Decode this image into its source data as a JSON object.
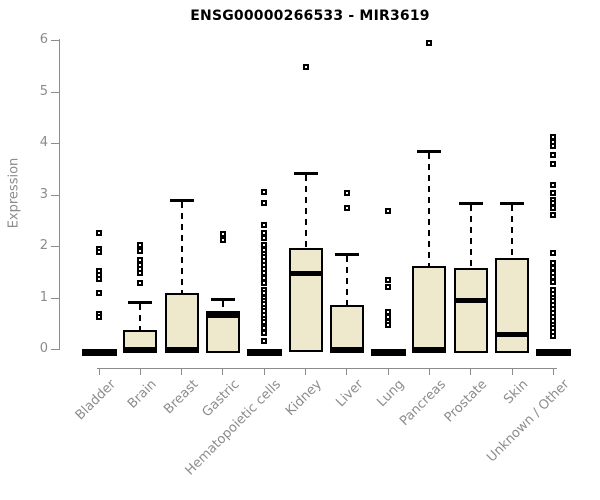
{
  "title": "ENSG00000266533 - MIR3619",
  "ylabel": "Expression",
  "colors": {
    "background": "#FFFFFF",
    "box_fill": "#EEE8CD",
    "box_border": "#000000",
    "median_line": "#000000",
    "axis_gray": "#8C8C8C",
    "title_color": "#000000"
  },
  "chart_data": {
    "type": "boxplot",
    "title": "ENSG00000266533 - MIR3619",
    "xlabel": "",
    "ylabel": "Expression",
    "ylim": [
      0,
      6
    ],
    "yticks": [
      0,
      1,
      2,
      3,
      4,
      5,
      6
    ],
    "grid": false,
    "legend": null,
    "categories": [
      "Bladder",
      "Brain",
      "Breast",
      "Gastric",
      "Hematopoietic cells",
      "Kidney",
      "Liver",
      "Lung",
      "Pancreas",
      "Prostate",
      "Skin",
      "Unknown / Other"
    ],
    "series": [
      {
        "name": "Bladder",
        "q1": 0,
        "median": 0,
        "q3": 0,
        "whisker_low": 0,
        "whisker_high": 0,
        "outliers": [
          2.26,
          1.95,
          1.89,
          1.52,
          1.44,
          1.35,
          1.08,
          0.68,
          0.62
        ]
      },
      {
        "name": "Brain",
        "q1": 0,
        "median": 0,
        "q3": 0.37,
        "whisker_low": 0,
        "whisker_high": 0.91,
        "outliers": [
          2.02,
          1.9,
          1.73,
          1.64,
          1.55,
          1.48,
          1.28
        ]
      },
      {
        "name": "Breast",
        "q1": 0,
        "median": 0,
        "q3": 1.09,
        "whisker_low": 0,
        "whisker_high": 2.9,
        "outliers": []
      },
      {
        "name": "Gastric",
        "q1": 0,
        "median": 0.66,
        "q3": 0.73,
        "whisker_low": 0,
        "whisker_high": 0.97,
        "outliers": [
          2.23,
          2.12
        ]
      },
      {
        "name": "Hematopoietic cells",
        "q1": 0,
        "median": 0,
        "q3": 0,
        "whisker_low": 0,
        "whisker_high": 0,
        "outliers": [
          3.05,
          2.83,
          2.4,
          2.25,
          2.15,
          2.02,
          1.92,
          1.85,
          1.78,
          1.7,
          1.63,
          1.55,
          1.48,
          1.38,
          1.28,
          1.15,
          1.08,
          1.0,
          0.94,
          0.87,
          0.8,
          0.73,
          0.66,
          0.59,
          0.52,
          0.4,
          0.32,
          0.15
        ]
      },
      {
        "name": "Kidney",
        "q1": 0.02,
        "median": 1.48,
        "q3": 1.96,
        "whisker_low": 0,
        "whisker_high": 3.42,
        "outliers": [
          5.48
        ]
      },
      {
        "name": "Liver",
        "q1": 0,
        "median": 0,
        "q3": 0.85,
        "whisker_low": 0,
        "whisker_high": 1.84,
        "outliers": [
          3.03,
          2.74
        ]
      },
      {
        "name": "Lung",
        "q1": 0,
        "median": 0,
        "q3": 0,
        "whisker_low": 0,
        "whisker_high": 0,
        "outliers": [
          2.68,
          1.34,
          1.2,
          0.72,
          0.62,
          0.52,
          0.47
        ]
      },
      {
        "name": "Pancreas",
        "q1": 0,
        "median": 0.03,
        "q3": 1.62,
        "whisker_low": 0,
        "whisker_high": 3.84,
        "outliers": [
          5.95
        ]
      },
      {
        "name": "Prostate",
        "q1": 0,
        "median": 0.95,
        "q3": 1.58,
        "whisker_low": 0,
        "whisker_high": 2.84,
        "outliers": []
      },
      {
        "name": "Skin",
        "q1": 0,
        "median": 0.3,
        "q3": 1.77,
        "whisker_low": 0,
        "whisker_high": 2.84,
        "outliers": []
      },
      {
        "name": "Unknown / Other",
        "q1": 0,
        "median": 0,
        "q3": 0,
        "whisker_low": 0,
        "whisker_high": 0,
        "outliers": [
          4.12,
          4.02,
          3.95,
          3.77,
          3.6,
          3.18,
          3.03,
          2.9,
          2.83,
          2.74,
          2.6,
          1.86,
          1.67,
          1.57,
          1.48,
          1.4,
          1.3,
          1.15,
          1.07,
          1.0,
          0.93,
          0.85,
          0.78,
          0.7,
          0.62,
          0.55,
          0.47,
          0.4,
          0.33,
          0.25
        ]
      }
    ]
  }
}
